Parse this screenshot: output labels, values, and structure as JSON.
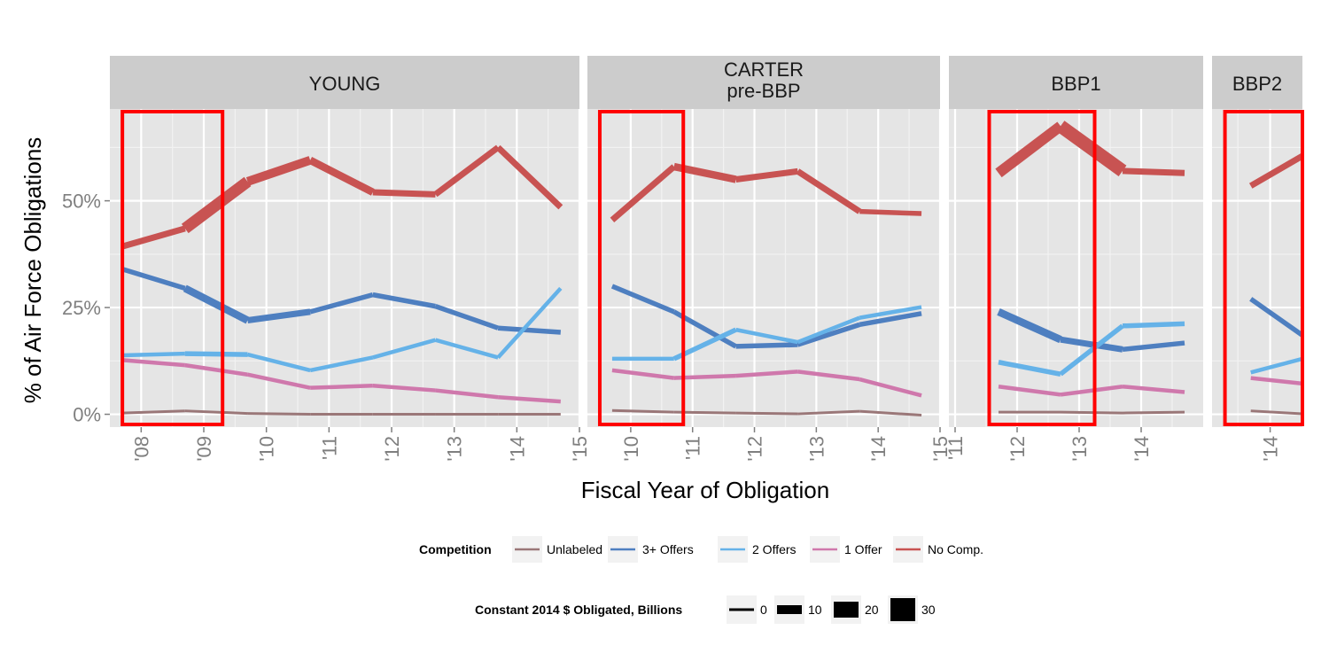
{
  "chart_data": {
    "type": "line",
    "ylabel": "% of  Air Force  Obligations",
    "xlabel": "Fiscal Year of Obligation",
    "y_ticks": [
      {
        "value": 0,
        "label": "0%"
      },
      {
        "value": 25,
        "label": "25%"
      },
      {
        "value": 50,
        "label": "50%"
      }
    ],
    "ylim": [
      -3,
      71.5
    ],
    "colors": {
      "Unlabeled": "#9a7778",
      "3+ Offers": "#4e7fc0",
      "2 Offers": "#65b2e8",
      "1 Offer": "#cf78ac",
      "No Comp.": "#c85352"
    },
    "panels": [
      {
        "title_lines": [
          "YOUNG"
        ],
        "xlim": [
          2007.5,
          2015.0
        ],
        "x_ticks": [
          {
            "value": 2008,
            "label": "'08"
          },
          {
            "value": 2009,
            "label": "'09"
          },
          {
            "value": 2010,
            "label": "'10"
          },
          {
            "value": 2011,
            "label": "'11"
          },
          {
            "value": 2012,
            "label": "'12"
          },
          {
            "value": 2013,
            "label": "'13"
          },
          {
            "value": 2014,
            "label": "'14"
          },
          {
            "value": 2015,
            "label": "'15"
          }
        ],
        "highlight": [
          2007.7,
          2009.3
        ],
        "series": [
          {
            "name": "Unlabeled",
            "x": [
              2007.7,
              2008.7,
              2009.7,
              2010.7,
              2011.7,
              2012.7,
              2013.7,
              2014.7
            ],
            "y": [
              0.3,
              0.8,
              0.2,
              0.0,
              0.0,
              0.0,
              0.0,
              0.0
            ],
            "w": [
              1,
              1,
              1,
              1,
              1,
              1,
              1,
              1
            ]
          },
          {
            "name": "3+ Offers",
            "x": [
              2007.7,
              2008.7,
              2009.7,
              2010.7,
              2011.7,
              2012.7,
              2013.7,
              2014.7
            ],
            "y": [
              34,
              29.5,
              22,
              24,
              28,
              25.3,
              20.2,
              19.2
            ],
            "w": [
              3,
              5,
              4,
              3,
              3,
              3,
              3,
              3
            ]
          },
          {
            "name": "2 Offers",
            "x": [
              2007.7,
              2008.7,
              2009.7,
              2010.7,
              2011.7,
              2012.7,
              2013.7,
              2014.7
            ],
            "y": [
              13.8,
              14.2,
              14.0,
              10.3,
              13.3,
              17.4,
              13.3,
              29.5
            ],
            "w": [
              2,
              3,
              2,
              2,
              2,
              2,
              2,
              2
            ]
          },
          {
            "name": "1 Offer",
            "x": [
              2007.7,
              2008.7,
              2009.7,
              2010.7,
              2011.7,
              2012.7,
              2013.7,
              2014.7
            ],
            "y": [
              12.7,
              11.5,
              9.3,
              6.2,
              6.7,
              5.6,
              4.0,
              3.0
            ],
            "w": [
              2,
              2,
              2,
              2,
              2,
              2,
              2,
              2
            ]
          },
          {
            "name": "No Comp.",
            "x": [
              2007.7,
              2008.7,
              2009.7,
              2010.7,
              2011.7,
              2012.7,
              2013.7,
              2014.7
            ],
            "y": [
              39.3,
              43.5,
              54.5,
              59.5,
              52,
              51.5,
              62.5,
              48.5
            ],
            "w": [
              4,
              8,
              6,
              5,
              4,
              4,
              4,
              3
            ]
          }
        ]
      },
      {
        "title_lines": [
          "CARTER",
          "pre-BBP"
        ],
        "xlim": [
          2009.3,
          2015.0
        ],
        "x_ticks": [
          {
            "value": 2010,
            "label": "'10"
          },
          {
            "value": 2011,
            "label": "'11"
          },
          {
            "value": 2012,
            "label": "'12"
          },
          {
            "value": 2013,
            "label": "'13"
          },
          {
            "value": 2014,
            "label": "'14"
          },
          {
            "value": 2015,
            "label": "'15"
          }
        ],
        "highlight": [
          2009.5,
          2010.85
        ],
        "series": [
          {
            "name": "Unlabeled",
            "x": [
              2009.7,
              2010.7,
              2011.7,
              2012.7,
              2013.7,
              2014.7
            ],
            "y": [
              0.9,
              0.5,
              0.3,
              0.1,
              0.7,
              -0.2
            ],
            "w": [
              1,
              1,
              1,
              1,
              1,
              1
            ]
          },
          {
            "name": "3+ Offers",
            "x": [
              2009.7,
              2010.7,
              2011.7,
              2012.7,
              2013.7,
              2014.7
            ],
            "y": [
              30.0,
              24.0,
              15.9,
              16.3,
              21.0,
              23.6
            ],
            "w": [
              3,
              3,
              3,
              3,
              3,
              3
            ]
          },
          {
            "name": "2 Offers",
            "x": [
              2009.7,
              2010.7,
              2011.7,
              2012.7,
              2013.7,
              2014.7
            ],
            "y": [
              13.0,
              13.0,
              19.8,
              16.9,
              22.6,
              25.1
            ],
            "w": [
              2,
              3,
              2,
              2,
              2,
              2
            ]
          },
          {
            "name": "1 Offer",
            "x": [
              2009.7,
              2010.7,
              2011.7,
              2012.7,
              2013.7,
              2014.7
            ],
            "y": [
              10.3,
              8.5,
              9.0,
              10.0,
              8.2,
              4.4
            ],
            "w": [
              2,
              2,
              2,
              2,
              2,
              2
            ]
          },
          {
            "name": "No Comp.",
            "x": [
              2009.7,
              2010.7,
              2011.7,
              2012.7,
              2013.7,
              2014.7
            ],
            "y": [
              45.5,
              58.0,
              55.0,
              56.9,
              47.5,
              47.0
            ],
            "w": [
              4,
              5,
              4,
              4,
              3,
              3
            ]
          }
        ]
      },
      {
        "title_lines": [
          "BBP1"
        ],
        "xlim": [
          2010.9,
          2015.0
        ],
        "x_ticks": [
          {
            "value": 2011,
            "label": "'11"
          },
          {
            "value": 2012,
            "label": "'12"
          },
          {
            "value": 2013,
            "label": "'13"
          },
          {
            "value": 2014,
            "label": "'14"
          }
        ],
        "highlight": [
          2011.55,
          2013.25
        ],
        "series": [
          {
            "name": "Unlabeled",
            "x": [
              2011.7,
              2012.7,
              2013.7,
              2014.7
            ],
            "y": [
              0.5,
              0.5,
              0.3,
              0.5
            ],
            "w": [
              1,
              1,
              1,
              1
            ]
          },
          {
            "name": "3+ Offers",
            "x": [
              2011.7,
              2012.7,
              2013.7,
              2014.7
            ],
            "y": [
              24.0,
              17.5,
              15.2,
              16.7
            ],
            "w": [
              5,
              4,
              3,
              3
            ]
          },
          {
            "name": "2 Offers",
            "x": [
              2011.7,
              2012.7,
              2013.7,
              2014.7
            ],
            "y": [
              12.2,
              9.4,
              20.7,
              21.2
            ],
            "w": [
              3,
              3,
              3,
              3
            ]
          },
          {
            "name": "1 Offer",
            "x": [
              2011.7,
              2012.7,
              2013.7,
              2014.7
            ],
            "y": [
              6.5,
              4.6,
              6.5,
              5.2
            ],
            "w": [
              2,
              2,
              2,
              2
            ]
          },
          {
            "name": "No Comp.",
            "x": [
              2011.7,
              2012.7,
              2013.7,
              2014.7
            ],
            "y": [
              56.5,
              67.5,
              57.0,
              56.5
            ],
            "w": [
              7,
              9,
              4,
              3
            ]
          }
        ]
      },
      {
        "title_lines": [
          "BBP2"
        ],
        "xlim": [
          2013.1,
          2014.5
        ],
        "x_ticks": [
          {
            "value": 2014,
            "label": "'14"
          }
        ],
        "highlight": [
          2013.3,
          2014.5
        ],
        "series": [
          {
            "name": "Unlabeled",
            "x": [
              2013.7,
              2014.5
            ],
            "y": [
              0.8,
              0.1
            ],
            "w": [
              1,
              1
            ]
          },
          {
            "name": "3+ Offers",
            "x": [
              2013.7,
              2014.5
            ],
            "y": [
              27.0,
              18.5
            ],
            "w": [
              3,
              3
            ]
          },
          {
            "name": "2 Offers",
            "x": [
              2013.7,
              2014.5
            ],
            "y": [
              9.8,
              13.0
            ],
            "w": [
              2,
              2
            ]
          },
          {
            "name": "1 Offer",
            "x": [
              2013.7,
              2014.5
            ],
            "y": [
              8.5,
              7.2
            ],
            "w": [
              2,
              2
            ]
          },
          {
            "name": "No Comp.",
            "x": [
              2013.7,
              2014.5
            ],
            "y": [
              53.5,
              60.5
            ],
            "w": [
              4,
              4
            ]
          }
        ]
      }
    ],
    "legend_competition": {
      "title": "Competition",
      "items": [
        "Unlabeled",
        "3+ Offers",
        "2 Offers",
        "1 Offer",
        "No Comp."
      ]
    },
    "legend_size": {
      "title": "Constant 2014 $ Obligated, Billions",
      "items": [
        {
          "label": "0",
          "value": 0
        },
        {
          "label": "10",
          "value": 10
        },
        {
          "label": "20",
          "value": 20
        },
        {
          "label": "30",
          "value": 30
        }
      ]
    }
  }
}
